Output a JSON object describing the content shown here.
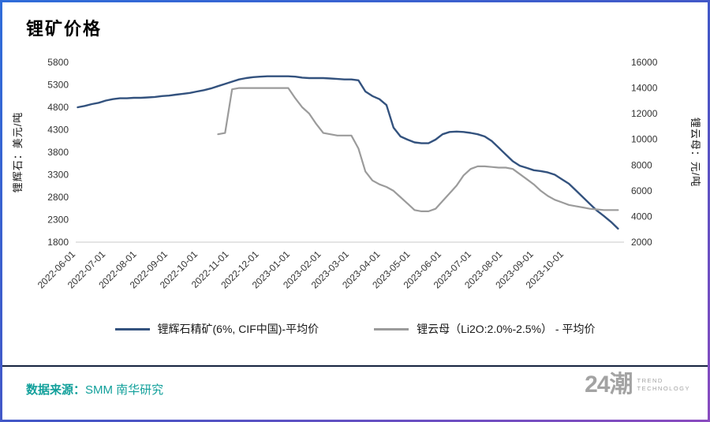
{
  "page": {
    "title": "锂矿价格",
    "source_label": "数据来源：",
    "source_text": "SMM 南华研究",
    "logo": {
      "text": "24潮",
      "sub1": "TREND",
      "sub2": "TECHNOLOGY"
    }
  },
  "colors": {
    "spodumene_line": "#33527e",
    "lepidolite_line": "#9b9b9b",
    "source_text": "#12a09b",
    "divider": "#16233f",
    "border_gradient_start": "#2f6cd9",
    "border_gradient_end": "#8a4bbf"
  },
  "chart_data": {
    "type": "line",
    "title": "锂矿价格",
    "grid": false,
    "legend_position": "bottom",
    "x_domain": [
      "2022-06-01",
      "2023-11-30"
    ],
    "x_ticks": [
      "2022-06-01",
      "2022-07-01",
      "2022-08-01",
      "2022-09-01",
      "2022-10-01",
      "2022-11-01",
      "2022-12-01",
      "2023-01-01",
      "2023-02-01",
      "2023-03-01",
      "2023-04-01",
      "2023-05-01",
      "2023-06-01",
      "2023-07-01",
      "2023-08-01",
      "2023-09-01",
      "2023-10-01"
    ],
    "left_axis": {
      "label": "锂辉石：美元/吨",
      "min": 1800,
      "max": 5800,
      "step": 500,
      "ticks": [
        1800,
        2300,
        2800,
        3300,
        3800,
        4300,
        4800,
        5300,
        5800
      ]
    },
    "right_axis": {
      "label": "锂云母：元/吨",
      "min": 2000,
      "max": 16000,
      "step": 2000,
      "ticks": [
        2000,
        4000,
        6000,
        8000,
        10000,
        12000,
        14000,
        16000
      ]
    },
    "series": [
      {
        "name": "锂辉石精矿(6%, CIF中国)-平均价",
        "axis": "left",
        "color": "#33527e",
        "points": [
          [
            "2022-06-03",
            4800
          ],
          [
            "2022-06-10",
            4830
          ],
          [
            "2022-06-17",
            4870
          ],
          [
            "2022-06-24",
            4900
          ],
          [
            "2022-07-01",
            4950
          ],
          [
            "2022-07-08",
            4980
          ],
          [
            "2022-07-15",
            5000
          ],
          [
            "2022-07-22",
            5000
          ],
          [
            "2022-07-29",
            5010
          ],
          [
            "2022-08-05",
            5010
          ],
          [
            "2022-08-12",
            5020
          ],
          [
            "2022-08-19",
            5030
          ],
          [
            "2022-08-26",
            5050
          ],
          [
            "2022-09-02",
            5060
          ],
          [
            "2022-09-09",
            5080
          ],
          [
            "2022-09-16",
            5100
          ],
          [
            "2022-09-23",
            5120
          ],
          [
            "2022-09-30",
            5150
          ],
          [
            "2022-10-07",
            5180
          ],
          [
            "2022-10-14",
            5220
          ],
          [
            "2022-10-21",
            5270
          ],
          [
            "2022-10-28",
            5320
          ],
          [
            "2022-11-04",
            5370
          ],
          [
            "2022-11-11",
            5420
          ],
          [
            "2022-11-18",
            5450
          ],
          [
            "2022-11-25",
            5470
          ],
          [
            "2022-12-02",
            5480
          ],
          [
            "2022-12-09",
            5490
          ],
          [
            "2022-12-16",
            5490
          ],
          [
            "2022-12-23",
            5490
          ],
          [
            "2022-12-30",
            5490
          ],
          [
            "2023-01-06",
            5480
          ],
          [
            "2023-01-13",
            5460
          ],
          [
            "2023-01-20",
            5450
          ],
          [
            "2023-01-27",
            5450
          ],
          [
            "2023-02-03",
            5450
          ],
          [
            "2023-02-10",
            5440
          ],
          [
            "2023-02-17",
            5430
          ],
          [
            "2023-02-24",
            5420
          ],
          [
            "2023-03-03",
            5420
          ],
          [
            "2023-03-10",
            5400
          ],
          [
            "2023-03-17",
            5150
          ],
          [
            "2023-03-24",
            5050
          ],
          [
            "2023-03-31",
            4980
          ],
          [
            "2023-04-07",
            4850
          ],
          [
            "2023-04-14",
            4350
          ],
          [
            "2023-04-21",
            4150
          ],
          [
            "2023-04-28",
            4080
          ],
          [
            "2023-05-05",
            4020
          ],
          [
            "2023-05-12",
            4000
          ],
          [
            "2023-05-19",
            4000
          ],
          [
            "2023-05-26",
            4080
          ],
          [
            "2023-06-02",
            4200
          ],
          [
            "2023-06-09",
            4250
          ],
          [
            "2023-06-16",
            4260
          ],
          [
            "2023-06-23",
            4250
          ],
          [
            "2023-06-30",
            4230
          ],
          [
            "2023-07-07",
            4200
          ],
          [
            "2023-07-14",
            4150
          ],
          [
            "2023-07-21",
            4050
          ],
          [
            "2023-07-28",
            3900
          ],
          [
            "2023-08-04",
            3750
          ],
          [
            "2023-08-11",
            3600
          ],
          [
            "2023-08-18",
            3500
          ],
          [
            "2023-08-25",
            3450
          ],
          [
            "2023-09-01",
            3400
          ],
          [
            "2023-09-08",
            3380
          ],
          [
            "2023-09-15",
            3350
          ],
          [
            "2023-09-22",
            3300
          ],
          [
            "2023-09-29",
            3200
          ],
          [
            "2023-10-06",
            3100
          ],
          [
            "2023-10-13",
            2950
          ],
          [
            "2023-10-20",
            2800
          ],
          [
            "2023-10-27",
            2650
          ],
          [
            "2023-11-03",
            2500
          ],
          [
            "2023-11-10",
            2380
          ],
          [
            "2023-11-17",
            2250
          ],
          [
            "2023-11-24",
            2100
          ]
        ]
      },
      {
        "name": "锂云母（Li2O:2.0%-2.5%） - 平均价",
        "axis": "right",
        "color": "#9b9b9b",
        "points": [
          [
            "2022-10-21",
            10400
          ],
          [
            "2022-10-28",
            10500
          ],
          [
            "2022-11-04",
            13900
          ],
          [
            "2022-11-11",
            14000
          ],
          [
            "2022-11-18",
            14000
          ],
          [
            "2022-11-25",
            14000
          ],
          [
            "2022-12-02",
            14000
          ],
          [
            "2022-12-09",
            14000
          ],
          [
            "2022-12-16",
            14000
          ],
          [
            "2022-12-23",
            14000
          ],
          [
            "2022-12-30",
            14000
          ],
          [
            "2023-01-06",
            13200
          ],
          [
            "2023-01-13",
            12500
          ],
          [
            "2023-01-20",
            12000
          ],
          [
            "2023-01-27",
            11200
          ],
          [
            "2023-02-03",
            10500
          ],
          [
            "2023-02-10",
            10400
          ],
          [
            "2023-02-17",
            10300
          ],
          [
            "2023-02-24",
            10300
          ],
          [
            "2023-03-03",
            10300
          ],
          [
            "2023-03-10",
            9300
          ],
          [
            "2023-03-17",
            7500
          ],
          [
            "2023-03-24",
            6800
          ],
          [
            "2023-03-31",
            6500
          ],
          [
            "2023-04-07",
            6300
          ],
          [
            "2023-04-14",
            6000
          ],
          [
            "2023-04-21",
            5500
          ],
          [
            "2023-04-28",
            5000
          ],
          [
            "2023-05-05",
            4500
          ],
          [
            "2023-05-12",
            4400
          ],
          [
            "2023-05-19",
            4400
          ],
          [
            "2023-05-26",
            4600
          ],
          [
            "2023-06-02",
            5200
          ],
          [
            "2023-06-09",
            5800
          ],
          [
            "2023-06-16",
            6400
          ],
          [
            "2023-06-23",
            7200
          ],
          [
            "2023-06-30",
            7700
          ],
          [
            "2023-07-07",
            7900
          ],
          [
            "2023-07-14",
            7900
          ],
          [
            "2023-07-21",
            7850
          ],
          [
            "2023-07-28",
            7800
          ],
          [
            "2023-08-04",
            7800
          ],
          [
            "2023-08-11",
            7700
          ],
          [
            "2023-08-18",
            7300
          ],
          [
            "2023-08-25",
            6900
          ],
          [
            "2023-09-01",
            6500
          ],
          [
            "2023-09-08",
            6000
          ],
          [
            "2023-09-15",
            5600
          ],
          [
            "2023-09-22",
            5300
          ],
          [
            "2023-09-29",
            5100
          ],
          [
            "2023-10-06",
            4900
          ],
          [
            "2023-10-13",
            4800
          ],
          [
            "2023-10-20",
            4700
          ],
          [
            "2023-10-27",
            4600
          ],
          [
            "2023-11-03",
            4550
          ],
          [
            "2023-11-10",
            4500
          ],
          [
            "2023-11-17",
            4500
          ],
          [
            "2023-11-24",
            4500
          ]
        ]
      }
    ]
  }
}
